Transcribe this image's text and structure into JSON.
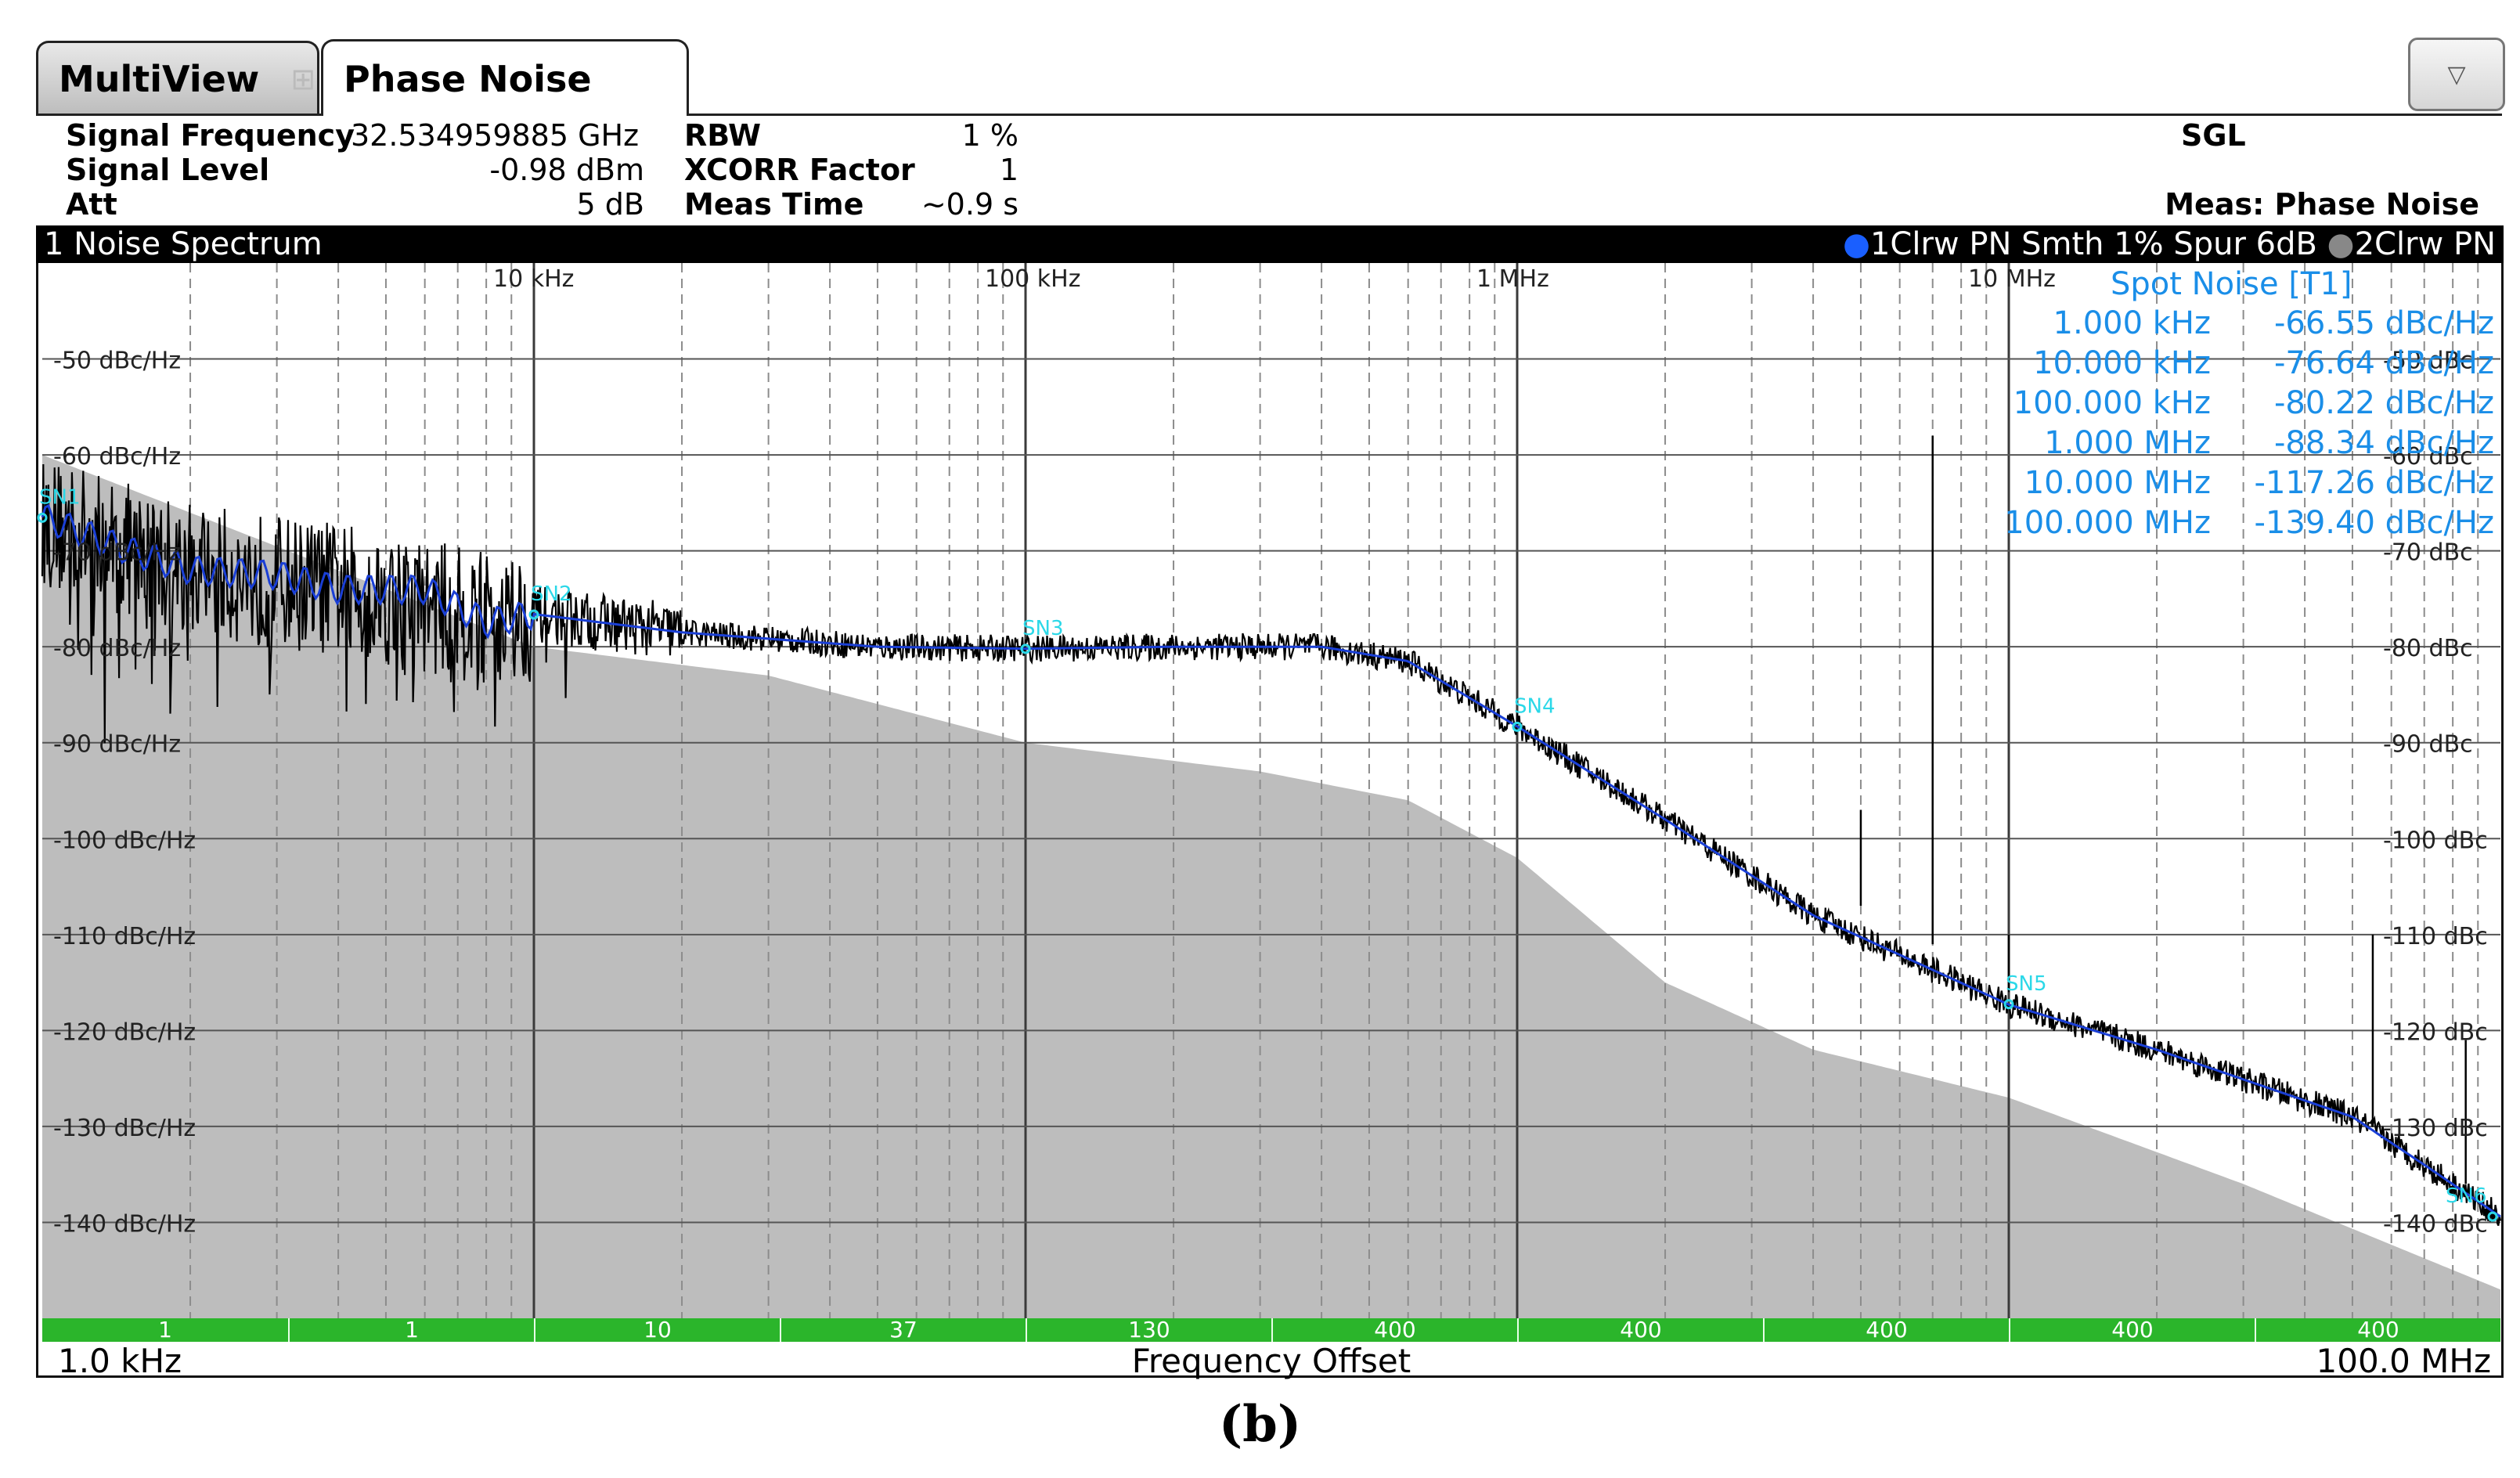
{
  "tabs": [
    {
      "label": "MultiView",
      "icon": "multiview-grid-icon"
    },
    {
      "label": "Phase Noise"
    }
  ],
  "dropdown_icon": "triangle-down-icon",
  "params": {
    "signal_frequency_label": "Signal Frequency",
    "signal_frequency_value": "32.534959885 GHz",
    "signal_level_label": "Signal Level",
    "signal_level_value": "-0.98 dBm",
    "att_label": "Att",
    "att_value": "5 dB",
    "rbw_label": "RBW",
    "rbw_value": "1 %",
    "xcorr_label": "XCORR Factor",
    "xcorr_value": "1",
    "meas_time_label": "Meas Time",
    "meas_time_value": "~0.9 s",
    "sweep_mode": "SGL",
    "meas": "Meas: Phase Noise"
  },
  "window": {
    "title": "1 Noise Spectrum",
    "trace_info_1": "1Clrw PN Smth 1% Spur 6dB",
    "trace_info_2": "2Clrw PN"
  },
  "spot_noise": {
    "title": "Spot Noise [T1]",
    "rows": [
      {
        "offset": "1.000 kHz",
        "value": "-66.55 dBc/Hz"
      },
      {
        "offset": "10.000 kHz",
        "value": "-76.64 dBc/Hz"
      },
      {
        "offset": "100.000 kHz",
        "value": "-80.22 dBc/Hz"
      },
      {
        "offset": "1.000 MHz",
        "value": "-88.34 dBc/Hz"
      },
      {
        "offset": "10.000 MHz",
        "value": "-117.26 dBc/Hz"
      },
      {
        "offset": "100.000 MHz",
        "value": "-139.40 dBc/Hz"
      }
    ]
  },
  "xcorr_segments": [
    "1",
    "1",
    "10",
    "37",
    "130",
    "400",
    "400",
    "400",
    "400",
    "400"
  ],
  "x_start": "1.0 kHz",
  "x_label": "Frequency Offset",
  "x_stop": "100.0 MHz",
  "caption": "(b)",
  "colors": {
    "trace1": "#000000",
    "trace2": "#1a3fd6",
    "marker": "#2bd8e8",
    "spot": "#1a8ee8",
    "floor": "#bdbdbd",
    "xcorr_bar": "#2bb52b"
  },
  "chart_data": {
    "type": "line",
    "x_scale": "log",
    "xlim": [
      1000,
      100000000
    ],
    "ylim": [
      -150,
      -40
    ],
    "x_tick_labels": [
      "10 kHz",
      "100 kHz",
      "1 MHz",
      "10 MHz"
    ],
    "x_ticks": [
      10000,
      100000,
      1000000,
      10000000
    ],
    "y_left_labels": [
      "-50 dBc/Hz",
      "-60 dBc/Hz",
      "-70 dBc/Hz",
      "-80 dBc/Hz",
      "-90 dBc/Hz",
      "-100 dBc/Hz",
      "-110 dBc/Hz",
      "-120 dBc/Hz",
      "-130 dBc/Hz",
      "-140 dBc/Hz"
    ],
    "y_right_labels": [
      "-50 dBc",
      "-60 dBc",
      "-70 dBc",
      "-80 dBc",
      "-90 dBc",
      "-100 dBc",
      "-110 dBc",
      "-120 dBc",
      "-130 dBc",
      "-140 dBc"
    ],
    "y_ticks": [
      -50,
      -60,
      -70,
      -80,
      -90,
      -100,
      -110,
      -120,
      -130,
      -140
    ],
    "grid": true,
    "series": [
      {
        "name": "1Clrw PN Smth 1% Spur 6dB",
        "role": "raw",
        "x": [
          1000,
          2000,
          4000,
          8000,
          10000,
          20000,
          50000,
          100000,
          200000,
          400000,
          600000,
          1000000,
          2000000,
          4000000,
          10000000,
          20000000,
          50000000,
          70000000,
          100000000
        ],
        "y": [
          -67,
          -72,
          -74,
          -77,
          -76.6,
          -78.5,
          -80,
          -80.2,
          -80,
          -80,
          -81.5,
          -88.3,
          -98,
          -108,
          -117.3,
          -122,
          -129,
          -134,
          -139.4
        ]
      },
      {
        "name": "2Clrw PN",
        "role": "smoothed",
        "x": [
          1000,
          1500,
          2000,
          3000,
          4000,
          6000,
          8000,
          10000,
          20000,
          50000,
          100000,
          200000,
          400000,
          600000,
          1000000,
          2000000,
          4000000,
          10000000,
          20000000,
          50000000,
          70000000,
          100000000
        ],
        "y": [
          -66.5,
          -70,
          -72,
          -72.5,
          -74,
          -74,
          -77.5,
          -76.6,
          -78.5,
          -80,
          -80.2,
          -80,
          -80,
          -81.5,
          -88.3,
          -98,
          -108,
          -117.3,
          -122,
          -129,
          -134,
          -139.4
        ]
      },
      {
        "name": "noise floor",
        "x": [
          1000,
          10000,
          30000,
          100000,
          300000,
          600000,
          1000000,
          2000000,
          4000000,
          10000000,
          30000000,
          100000000
        ],
        "y": [
          -60,
          -80,
          -83,
          -90,
          -93,
          -96,
          -102,
          -115,
          -122,
          -127,
          -136,
          -147
        ]
      }
    ],
    "spurs": [
      {
        "x": 5000000,
        "y": -97,
        "base": -107
      },
      {
        "x": 7000000,
        "y": -58,
        "base": -111
      },
      {
        "x": 10000000,
        "y": -110,
        "base": -116
      },
      {
        "x": 55000000,
        "y": -110,
        "base": -130
      },
      {
        "x": 85000000,
        "y": -121,
        "base": -136
      }
    ],
    "markers": [
      {
        "label": "SN1",
        "x": 1000,
        "y": -66.55
      },
      {
        "label": "SN2",
        "x": 10000,
        "y": -76.64
      },
      {
        "label": "SN3",
        "x": 100000,
        "y": -80.22
      },
      {
        "label": "SN4",
        "x": 1000000,
        "y": -88.34
      },
      {
        "label": "SN5",
        "x": 10000000,
        "y": -117.26
      },
      {
        "label": "SN6",
        "x": 100000000,
        "y": -139.4
      }
    ]
  }
}
